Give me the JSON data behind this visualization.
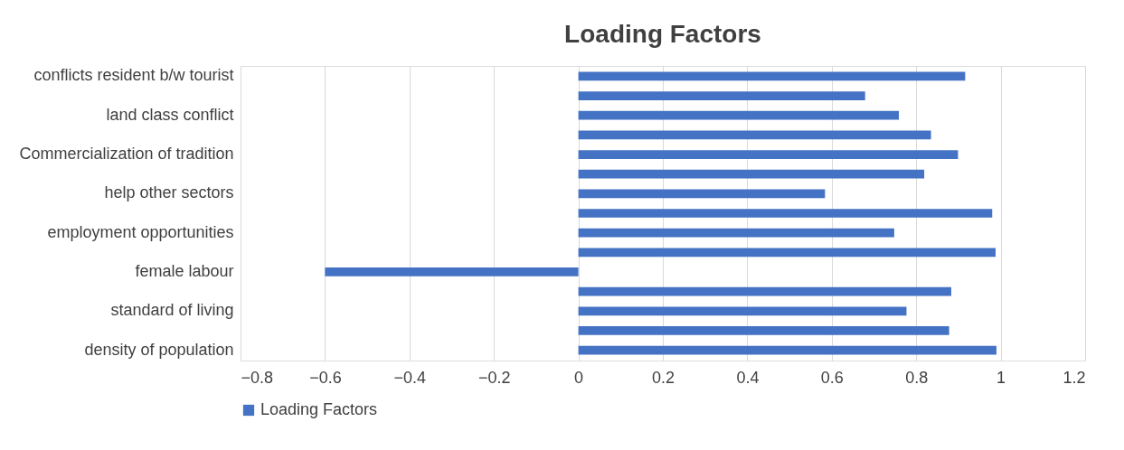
{
  "chart_data": {
    "type": "bar",
    "orientation": "horizontal",
    "title": "Loading Factors",
    "categories": [
      "conflicts resident b/w tourist",
      null,
      "land class conflict",
      null,
      "Commercialization of tradition",
      null,
      "help other sectors",
      null,
      "employment opportunities",
      null,
      "female labour",
      null,
      "standard of living",
      null,
      "density of population"
    ],
    "series": [
      {
        "name": "Loading Factors",
        "color": "#4472c4",
        "values": [
          0.916,
          0.679,
          0.759,
          0.835,
          0.899,
          0.819,
          0.584,
          0.98,
          0.748,
          0.988,
          -0.6,
          0.883,
          0.777,
          0.878,
          0.99
        ]
      }
    ],
    "xlim": [
      -0.8,
      1.2
    ],
    "xticks": [
      -0.8,
      -0.6,
      -0.4,
      -0.2,
      0,
      0.2,
      0.4,
      0.6,
      0.8,
      1,
      1.2
    ],
    "grid": "x",
    "legend": "bottom"
  }
}
